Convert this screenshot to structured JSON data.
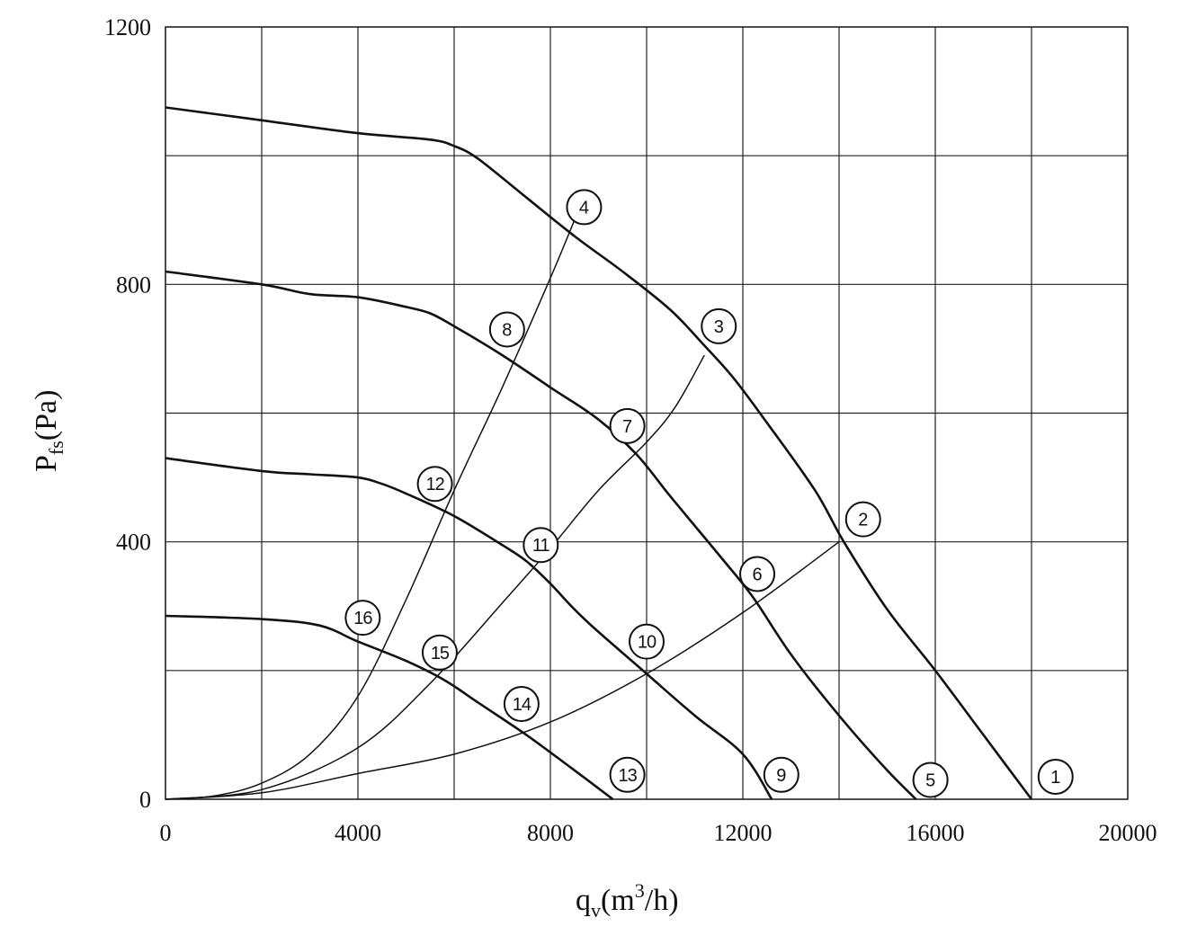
{
  "chart_data": {
    "type": "line",
    "xlabel": {
      "main": "q",
      "sub": "v",
      "unit_prefix": "(m",
      "sup": "3",
      "unit_suffix": "/h)"
    },
    "ylabel": {
      "main": "P",
      "sub": "fs",
      "unit": "(Pa)"
    },
    "xlim": [
      0,
      20000
    ],
    "ylim": [
      0,
      1200
    ],
    "x_ticks": [
      0,
      4000,
      8000,
      12000,
      16000,
      20000
    ],
    "x_tick_labels": [
      "0",
      "4000",
      "8000",
      "12000",
      "16000",
      "20000"
    ],
    "y_ticks": [
      0,
      400,
      800,
      1200
    ],
    "y_tick_labels": [
      "0",
      "400",
      "800",
      "1200"
    ],
    "grid_x": [
      2000,
      4000,
      6000,
      8000,
      10000,
      12000,
      14000,
      16000,
      18000
    ],
    "grid_y": [
      200,
      400,
      600,
      800,
      1000
    ],
    "grid": true,
    "fan_curves": [
      {
        "label": "1,2,3,4",
        "points": [
          [
            0,
            1075
          ],
          [
            2000,
            1055
          ],
          [
            4000,
            1035
          ],
          [
            5500,
            1025
          ],
          [
            6000,
            1015
          ],
          [
            6500,
            995
          ],
          [
            7500,
            935
          ],
          [
            8500,
            875
          ],
          [
            9500,
            820
          ],
          [
            10500,
            760
          ],
          [
            11200,
            705
          ],
          [
            11800,
            655
          ],
          [
            12500,
            585
          ],
          [
            13500,
            480
          ],
          [
            14100,
            400
          ],
          [
            15000,
            295
          ],
          [
            16000,
            200
          ],
          [
            17000,
            100
          ],
          [
            18000,
            0
          ]
        ]
      },
      {
        "label": "5,6,7,8",
        "points": [
          [
            0,
            820
          ],
          [
            2000,
            800
          ],
          [
            3000,
            785
          ],
          [
            4000,
            780
          ],
          [
            5000,
            765
          ],
          [
            5500,
            755
          ],
          [
            6000,
            735
          ],
          [
            7000,
            690
          ],
          [
            8000,
            640
          ],
          [
            9000,
            590
          ],
          [
            9800,
            535
          ],
          [
            10500,
            470
          ],
          [
            11500,
            380
          ],
          [
            12200,
            315
          ],
          [
            13000,
            225
          ],
          [
            14000,
            130
          ],
          [
            15000,
            45
          ],
          [
            15600,
            0
          ]
        ]
      },
      {
        "label": "9,10,11,12",
        "points": [
          [
            0,
            530
          ],
          [
            2000,
            510
          ],
          [
            3000,
            505
          ],
          [
            4000,
            500
          ],
          [
            4500,
            490
          ],
          [
            5000,
            475
          ],
          [
            6000,
            440
          ],
          [
            7000,
            395
          ],
          [
            7500,
            370
          ],
          [
            8000,
            335
          ],
          [
            8500,
            295
          ],
          [
            9000,
            260
          ],
          [
            10000,
            195
          ],
          [
            11000,
            130
          ],
          [
            12000,
            70
          ],
          [
            12600,
            0
          ]
        ]
      },
      {
        "label": "13,14,15,16",
        "points": [
          [
            0,
            285
          ],
          [
            2000,
            280
          ],
          [
            3200,
            270
          ],
          [
            4000,
            245
          ],
          [
            5000,
            215
          ],
          [
            5800,
            185
          ],
          [
            6500,
            150
          ],
          [
            7500,
            100
          ],
          [
            8500,
            45
          ],
          [
            9300,
            0
          ]
        ]
      }
    ],
    "system_curves": [
      {
        "label": "4,8,12,16",
        "points": [
          [
            0,
            0
          ],
          [
            1000,
            5
          ],
          [
            2000,
            25
          ],
          [
            3000,
            70
          ],
          [
            4000,
            160
          ],
          [
            5000,
            310
          ],
          [
            6000,
            480
          ],
          [
            7000,
            640
          ],
          [
            8000,
            810
          ],
          [
            8500,
            900
          ]
        ]
      },
      {
        "label": "3,7,11,15",
        "points": [
          [
            0,
            0
          ],
          [
            2000,
            15
          ],
          [
            4000,
            80
          ],
          [
            5500,
            180
          ],
          [
            7000,
            305
          ],
          [
            8000,
            390
          ],
          [
            9000,
            480
          ],
          [
            10000,
            555
          ],
          [
            10600,
            610
          ],
          [
            11200,
            690
          ]
        ]
      },
      {
        "label": "2,6,10,14",
        "points": [
          [
            0,
            0
          ],
          [
            2000,
            10
          ],
          [
            4000,
            40
          ],
          [
            6000,
            70
          ],
          [
            8000,
            120
          ],
          [
            10000,
            195
          ],
          [
            12000,
            290
          ],
          [
            14000,
            400
          ]
        ]
      }
    ],
    "point_labels": [
      {
        "text": "1",
        "x": 18500,
        "y": 35
      },
      {
        "text": "2",
        "x": 14500,
        "y": 435
      },
      {
        "text": "3",
        "x": 11500,
        "y": 735
      },
      {
        "text": "4",
        "x": 8700,
        "y": 920
      },
      {
        "text": "5",
        "x": 15900,
        "y": 30
      },
      {
        "text": "6",
        "x": 12300,
        "y": 350
      },
      {
        "text": "7",
        "x": 9600,
        "y": 580
      },
      {
        "text": "8",
        "x": 7100,
        "y": 730
      },
      {
        "text": "9",
        "x": 12800,
        "y": 38
      },
      {
        "text": "10",
        "x": 10000,
        "y": 245
      },
      {
        "text": "11",
        "x": 7800,
        "y": 395
      },
      {
        "text": "12",
        "x": 5600,
        "y": 490
      },
      {
        "text": "13",
        "x": 9600,
        "y": 38
      },
      {
        "text": "14",
        "x": 7400,
        "y": 148
      },
      {
        "text": "15",
        "x": 5700,
        "y": 228
      },
      {
        "text": "16",
        "x": 4100,
        "y": 282
      }
    ]
  }
}
